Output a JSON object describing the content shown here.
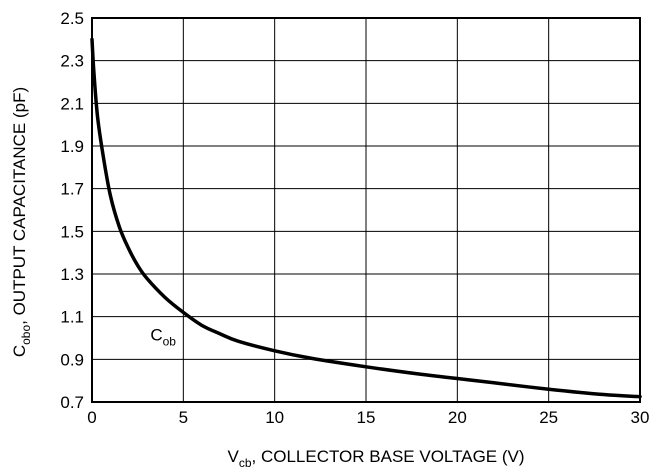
{
  "chart_data": {
    "type": "line",
    "xlabel": {
      "main": "V",
      "sub": "cb",
      "rest": ", COLLECTOR BASE VOLTAGE (V)"
    },
    "ylabel": {
      "main": "C",
      "sub": "obo",
      "rest": ", OUTPUT CAPACITANCE (pF)"
    },
    "xlim": [
      0,
      30
    ],
    "ylim": [
      0.7,
      2.5
    ],
    "xticks": [
      0,
      5,
      10,
      15,
      20,
      25,
      30
    ],
    "yticks": [
      0.7,
      0.9,
      1.1,
      1.3,
      1.5,
      1.7,
      1.9,
      2.1,
      2.3,
      2.5
    ],
    "xtick_labels": [
      "0",
      "5",
      "10",
      "15",
      "20",
      "25",
      "30"
    ],
    "ytick_labels": [
      "0.7",
      "0.9",
      "1.1",
      "1.3",
      "1.5",
      "1.7",
      "1.9",
      "2.1",
      "2.3",
      "2.5"
    ],
    "grid": true,
    "series": [
      {
        "name": "C_ob",
        "label": {
          "main": "C",
          "sub": "ob"
        },
        "color": "#000000",
        "x": [
          0,
          0.1,
          0.3,
          0.6,
          1,
          1.5,
          2,
          2.5,
          3,
          4,
          5,
          6,
          7,
          8,
          10,
          12,
          15,
          18,
          20,
          22,
          25,
          28,
          30
        ],
        "y": [
          2.4,
          2.25,
          2.04,
          1.86,
          1.67,
          1.52,
          1.42,
          1.34,
          1.28,
          1.19,
          1.12,
          1.06,
          1.02,
          0.985,
          0.94,
          0.905,
          0.865,
          0.83,
          0.81,
          0.79,
          0.76,
          0.735,
          0.725
        ]
      }
    ]
  }
}
